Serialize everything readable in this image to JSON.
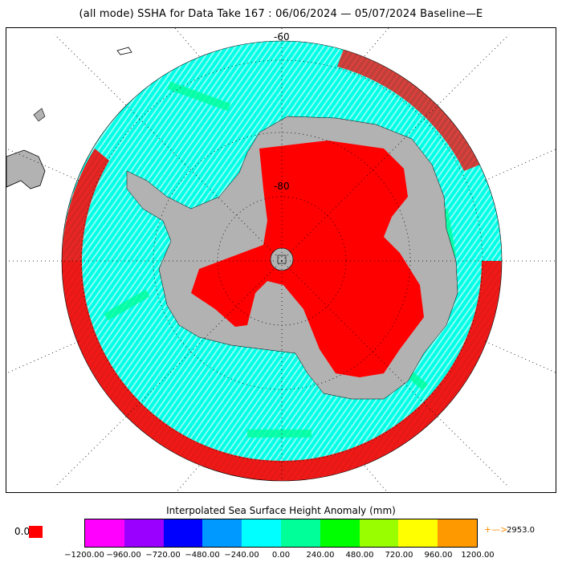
{
  "title": "(all mode) SSHA for Data Take 167 : 06/06/2024 — 05/07/2024 Baseline—E",
  "map": {
    "projection": "south-polar-stereographic",
    "lat_labels": [
      "-60",
      "-80"
    ],
    "colors": {
      "ocean_base": "#00ffe6",
      "ocean_secondary": "#00ff99",
      "land": "#b2b2b2",
      "ice_sheet_anomaly": "#ff0000",
      "outer_ring": "#ff0000",
      "gap": "#ffffff"
    }
  },
  "colorbar": {
    "title": "Interpolated Sea Surface Height Anomaly (mm)",
    "colors": [
      "#ff00ff",
      "#9900ff",
      "#0000ff",
      "#0099ff",
      "#00ffff",
      "#00ff99",
      "#00ff00",
      "#99ff00",
      "#ffff00",
      "#ff9900"
    ],
    "ticks": [
      "−1200.00",
      "−960.00",
      "−720.00",
      "−480.00",
      "−240.00",
      "0.00",
      "240.00",
      "480.00",
      "720.00",
      "960.00",
      "1200.00"
    ],
    "zero_label": "0.0",
    "zero_color": "#ff0000",
    "overflow_arrow": "+—>",
    "overflow_label": "2953.0"
  }
}
